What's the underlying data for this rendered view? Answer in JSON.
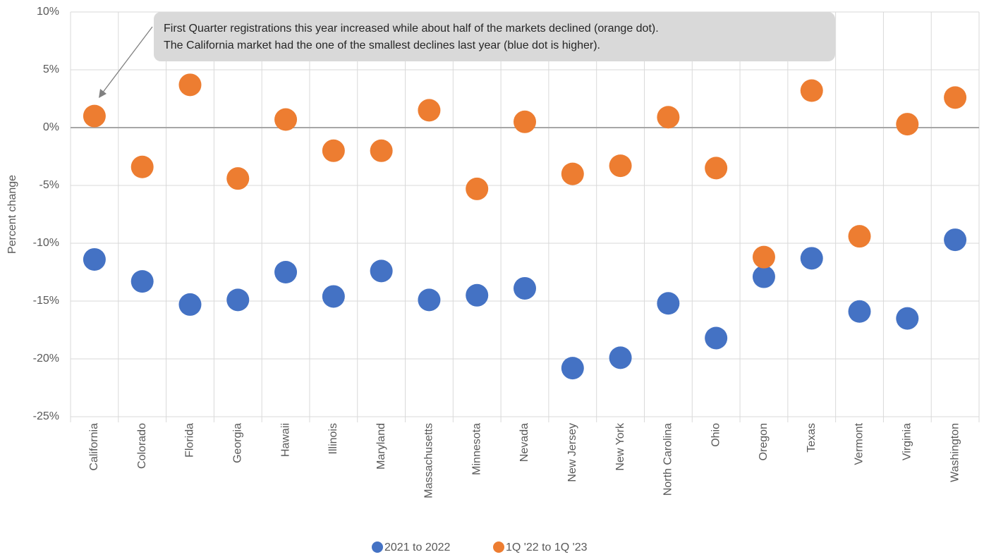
{
  "chart_data": {
    "type": "dot",
    "y_label": "Percent change",
    "annotation": [
      "First Quarter registrations this year increased while about half of the markets declined (orange dot).",
      "The California market had the one of the smallest declines last year (blue dot is higher)."
    ],
    "categories": [
      "California",
      "Colorado",
      "Florida",
      "Georgia",
      "Hawaii",
      "Illinois",
      "Maryland",
      "Massachusetts",
      "Minnesota",
      "Nevada",
      "New Jersey",
      "New York",
      "North Carolina",
      "Ohio",
      "Oregon",
      "Texas",
      "Vermont",
      "Virginia",
      "Washington"
    ],
    "series": [
      {
        "name": "2021 to 2022",
        "color": "#4472c4",
        "values": [
          -11.4,
          -13.3,
          -15.3,
          -14.9,
          -12.5,
          -14.6,
          -12.4,
          -14.9,
          -14.5,
          -13.9,
          -20.8,
          -19.9,
          -15.2,
          -18.2,
          -12.9,
          -11.3,
          -15.9,
          -16.5,
          -9.7
        ]
      },
      {
        "name": "1Q '22 to 1Q '23",
        "color": "#ed7d31",
        "values": [
          1.0,
          -3.4,
          3.7,
          -4.4,
          0.7,
          -2.0,
          -2.0,
          1.5,
          -5.3,
          0.5,
          -4.0,
          -3.3,
          0.9,
          -3.5,
          -11.2,
          3.2,
          -9.4,
          0.3,
          2.6
        ]
      }
    ],
    "ylim": [
      -25,
      10
    ],
    "yticks": [
      {
        "value": -25,
        "label": "-25%"
      },
      {
        "value": -20,
        "label": "-20%"
      },
      {
        "value": -15,
        "label": "-15%"
      },
      {
        "value": -10,
        "label": "-10%"
      },
      {
        "value": -5,
        "label": "-5%"
      },
      {
        "value": 0,
        "label": "0%"
      },
      {
        "value": 5,
        "label": "5%"
      },
      {
        "value": 10,
        "label": "10%"
      }
    ],
    "grid": true,
    "legend": "bottom"
  }
}
